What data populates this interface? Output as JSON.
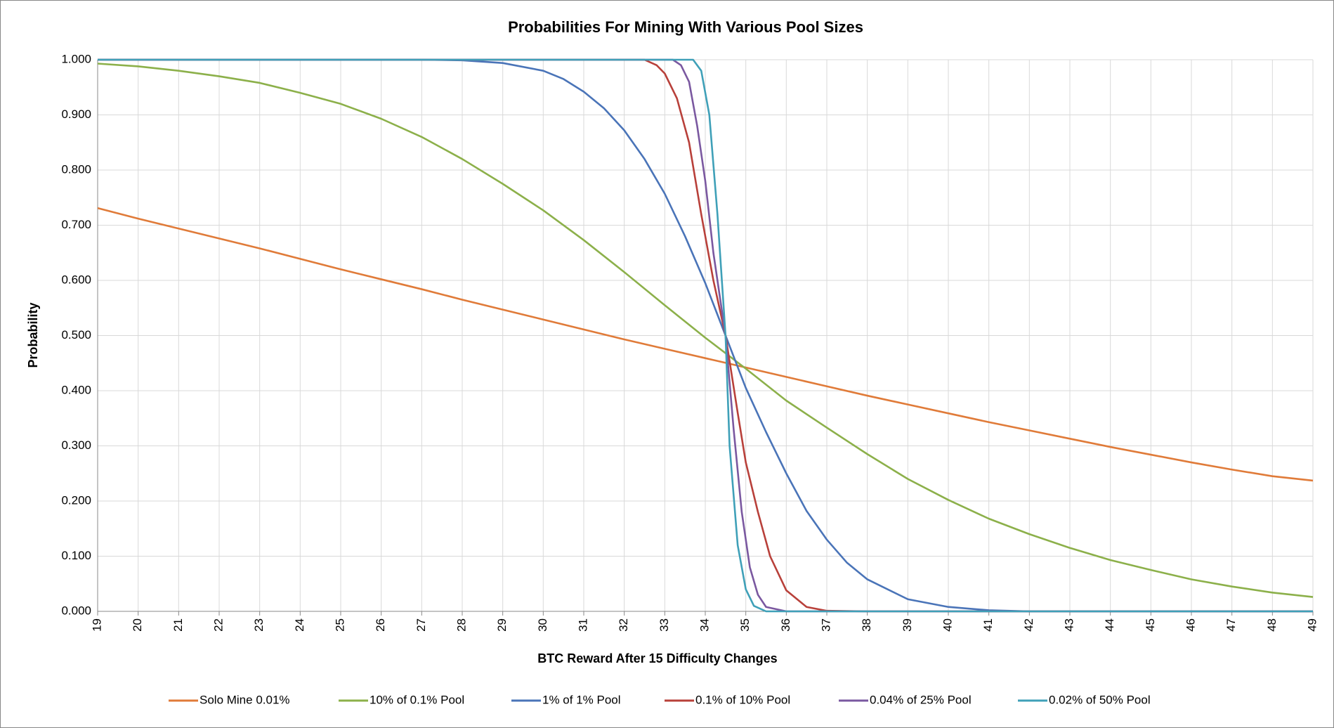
{
  "chart_data": {
    "type": "line",
    "title": "Probabilities For Mining With Various Pool Sizes",
    "x_label": "BTC Reward After 15 Difficulty Changes",
    "y_label": "Probability",
    "xlim": [
      19,
      49
    ],
    "xticks": [
      19,
      20,
      21,
      22,
      23,
      24,
      25,
      26,
      27,
      28,
      29,
      30,
      31,
      32,
      33,
      34,
      35,
      36,
      37,
      38,
      39,
      40,
      41,
      42,
      43,
      44,
      45,
      46,
      47,
      48,
      49
    ],
    "ylim": [
      0,
      1
    ],
    "yticks": [
      {
        "value": 0,
        "label": "0.000"
      },
      {
        "value": 0.1,
        "label": "0.100"
      },
      {
        "value": 0.2,
        "label": "0.200"
      },
      {
        "value": 0.3,
        "label": "0.300"
      },
      {
        "value": 0.4,
        "label": "0.400"
      },
      {
        "value": 0.5,
        "label": "0.500"
      },
      {
        "value": 0.6,
        "label": "0.600"
      },
      {
        "value": 0.7,
        "label": "0.700"
      },
      {
        "value": 0.8,
        "label": "0.800"
      },
      {
        "value": 0.9,
        "label": "0.900"
      },
      {
        "value": 1,
        "label": "1.000"
      }
    ],
    "grid": true,
    "legend": "bottom",
    "series": [
      {
        "name": "Solo Mine 0.01%",
        "color": "#e07b39",
        "x": [
          19,
          20,
          21,
          22,
          23,
          24,
          25,
          26,
          27,
          28,
          29,
          30,
          31,
          32,
          33,
          34,
          35,
          36,
          37,
          38,
          39,
          40,
          41,
          42,
          43,
          44,
          45,
          46,
          47,
          48,
          49
        ],
        "values": [
          0.731,
          0.712,
          0.694,
          0.676,
          0.658,
          0.639,
          0.62,
          0.602,
          0.584,
          0.565,
          0.547,
          0.529,
          0.511,
          0.493,
          0.476,
          0.459,
          0.442,
          0.425,
          0.408,
          0.391,
          0.375,
          0.359,
          0.343,
          0.328,
          0.313,
          0.298,
          0.284,
          0.27,
          0.257,
          0.245,
          0.237
        ]
      },
      {
        "name": "10% of 0.1% Pool",
        "color": "#8cb04a",
        "x": [
          19,
          20,
          21,
          22,
          23,
          24,
          25,
          26,
          27,
          28,
          29,
          30,
          31,
          32,
          33,
          34,
          35,
          36,
          37,
          38,
          39,
          40,
          41,
          42,
          43,
          44,
          45,
          46,
          47,
          48,
          49
        ],
        "values": [
          0.993,
          0.988,
          0.98,
          0.97,
          0.958,
          0.94,
          0.92,
          0.893,
          0.86,
          0.82,
          0.775,
          0.727,
          0.673,
          0.615,
          0.555,
          0.496,
          0.44,
          0.382,
          0.333,
          0.285,
          0.24,
          0.202,
          0.168,
          0.14,
          0.115,
          0.093,
          0.075,
          0.058,
          0.045,
          0.034,
          0.026
        ]
      },
      {
        "name": "1% of 1% Pool",
        "color": "#4a74b8",
        "x": [
          19,
          27,
          28,
          29,
          30,
          30.5,
          31,
          31.5,
          32,
          32.5,
          33,
          33.5,
          34,
          34.5,
          35,
          35.5,
          36,
          36.5,
          37,
          37.5,
          38,
          39,
          40,
          41,
          42,
          49
        ],
        "values": [
          1,
          1,
          0.999,
          0.994,
          0.98,
          0.965,
          0.942,
          0.912,
          0.872,
          0.82,
          0.757,
          0.68,
          0.595,
          0.5,
          0.405,
          0.325,
          0.25,
          0.182,
          0.13,
          0.088,
          0.058,
          0.022,
          0.008,
          0.002,
          0,
          0
        ]
      },
      {
        "name": "0.1% of 10% Pool",
        "color": "#b8403a",
        "x": [
          19,
          32.5,
          32.8,
          33,
          33.3,
          33.6,
          33.9,
          34.2,
          34.5,
          34.8,
          35,
          35.3,
          35.6,
          36,
          36.5,
          37,
          38,
          49
        ],
        "values": [
          1,
          1,
          0.99,
          0.975,
          0.93,
          0.85,
          0.72,
          0.6,
          0.5,
          0.36,
          0.27,
          0.18,
          0.1,
          0.038,
          0.008,
          0.001,
          0,
          0
        ]
      },
      {
        "name": "0.04% of 25% Pool",
        "color": "#7a58a0",
        "x": [
          19,
          33.2,
          33.4,
          33.6,
          33.8,
          34,
          34.2,
          34.5,
          34.7,
          34.9,
          35.1,
          35.3,
          35.5,
          36,
          49
        ],
        "values": [
          1,
          1,
          0.99,
          0.96,
          0.88,
          0.78,
          0.65,
          0.5,
          0.33,
          0.18,
          0.08,
          0.03,
          0.008,
          0,
          0
        ]
      },
      {
        "name": "0.02% of 50% Pool",
        "color": "#3fa0b8",
        "x": [
          19,
          33.7,
          33.9,
          34.1,
          34.3,
          34.5,
          34.6,
          34.8,
          35,
          35.2,
          35.5,
          49
        ],
        "values": [
          1,
          1,
          0.98,
          0.9,
          0.72,
          0.5,
          0.3,
          0.12,
          0.04,
          0.01,
          0,
          0
        ]
      }
    ]
  }
}
